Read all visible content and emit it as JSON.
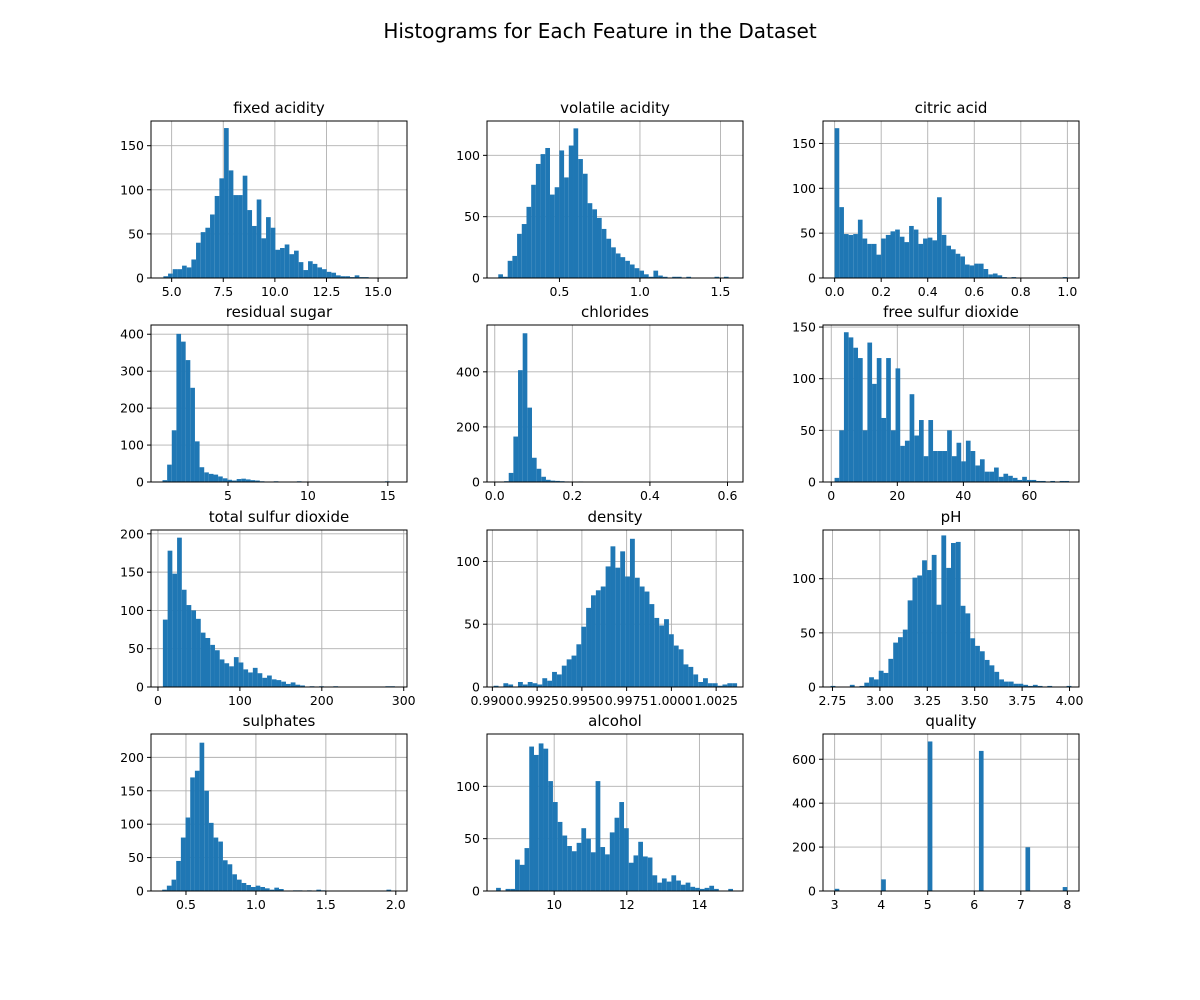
{
  "figure": {
    "title": "Histograms for Each Feature in the Dataset"
  },
  "style": {
    "bar_color": "#1f77b4",
    "grid_color": "#b0b0b0"
  },
  "chart_data": [
    {
      "type": "bar",
      "title": "fixed acidity",
      "grid": true,
      "xlim": [
        4.0,
        16.4
      ],
      "ylim": [
        0,
        178
      ],
      "xticks": [
        {
          "v": 5.0,
          "label": "5.0"
        },
        {
          "v": 7.5,
          "label": "7.5"
        },
        {
          "v": 10.0,
          "label": "10.0"
        },
        {
          "v": 12.5,
          "label": "12.5"
        },
        {
          "v": 15.0,
          "label": "15.0"
        }
      ],
      "yticks": [
        {
          "v": 0,
          "label": "0"
        },
        {
          "v": 50,
          "label": "50"
        },
        {
          "v": 100,
          "label": "100"
        },
        {
          "v": 150,
          "label": "150"
        }
      ],
      "bin_start": 4.6,
      "bin_width": 0.226,
      "values": [
        2,
        5,
        10,
        10,
        14,
        12,
        21,
        40,
        52,
        57,
        72,
        93,
        113,
        170,
        122,
        94,
        94,
        116,
        77,
        59,
        89,
        45,
        69,
        57,
        32,
        34,
        38,
        27,
        31,
        18,
        9,
        19,
        16,
        12,
        10,
        7,
        6,
        3,
        2,
        2,
        1,
        3,
        1,
        1
      ]
    },
    {
      "type": "bar",
      "title": "volatile acidity",
      "grid": true,
      "xlim": [
        0.05,
        1.64
      ],
      "ylim": [
        0,
        128
      ],
      "xticks": [
        {
          "v": 0.5,
          "label": "0.5"
        },
        {
          "v": 1.0,
          "label": "1.0"
        },
        {
          "v": 1.5,
          "label": "1.5"
        }
      ],
      "yticks": [
        {
          "v": 0,
          "label": "0"
        },
        {
          "v": 50,
          "label": "50"
        },
        {
          "v": 100,
          "label": "100"
        }
      ],
      "bin_start": 0.12,
      "bin_width": 0.0292,
      "values": [
        3,
        1,
        14,
        18,
        36,
        44,
        58,
        76,
        93,
        101,
        106,
        68,
        74,
        104,
        82,
        108,
        122,
        97,
        85,
        61,
        56,
        49,
        40,
        32,
        25,
        20,
        17,
        14,
        11,
        8,
        6,
        3,
        1,
        6,
        2,
        1,
        0,
        1,
        1,
        0,
        1,
        0,
        0,
        0,
        0,
        0,
        1,
        0,
        1,
        0
      ]
    },
    {
      "type": "bar",
      "title": "citric acid",
      "grid": true,
      "xlim": [
        -0.05,
        1.05
      ],
      "ylim": [
        0,
        175
      ],
      "xticks": [
        {
          "v": 0.0,
          "label": "0.0"
        },
        {
          "v": 0.2,
          "label": "0.2"
        },
        {
          "v": 0.4,
          "label": "0.4"
        },
        {
          "v": 0.6,
          "label": "0.6"
        },
        {
          "v": 0.8,
          "label": "0.8"
        },
        {
          "v": 1.0,
          "label": "1.0"
        }
      ],
      "yticks": [
        {
          "v": 0,
          "label": "0"
        },
        {
          "v": 50,
          "label": "50"
        },
        {
          "v": 100,
          "label": "100"
        },
        {
          "v": 150,
          "label": "150"
        }
      ],
      "bin_start": 0.0,
      "bin_width": 0.02,
      "values": [
        167,
        79,
        49,
        48,
        49,
        65,
        44,
        38,
        38,
        26,
        44,
        48,
        52,
        54,
        46,
        40,
        58,
        54,
        38,
        44,
        45,
        42,
        90,
        48,
        36,
        32,
        27,
        24,
        15,
        14,
        16,
        16,
        10,
        4,
        5,
        3,
        1,
        0,
        1,
        0,
        0,
        0,
        0,
        0,
        0,
        0,
        0,
        0,
        0,
        1
      ]
    },
    {
      "type": "bar",
      "title": "residual sugar",
      "grid": true,
      "xlim": [
        0.18,
        16.2
      ],
      "ylim": [
        0,
        425
      ],
      "xticks": [
        {
          "v": 5,
          "label": "5"
        },
        {
          "v": 10,
          "label": "10"
        },
        {
          "v": 15,
          "label": "15"
        }
      ],
      "yticks": [
        {
          "v": 0,
          "label": "0"
        },
        {
          "v": 100,
          "label": "100"
        },
        {
          "v": 200,
          "label": "200"
        },
        {
          "v": 300,
          "label": "300"
        },
        {
          "v": 400,
          "label": "400"
        }
      ],
      "bin_start": 0.9,
      "bin_width": 0.29,
      "values": [
        5,
        47,
        140,
        401,
        380,
        330,
        255,
        110,
        40,
        26,
        22,
        20,
        15,
        10,
        6,
        4,
        8,
        9,
        7,
        5,
        4,
        2,
        1,
        0,
        2,
        0,
        1,
        0,
        0,
        2,
        0,
        0,
        1,
        0,
        0,
        0,
        0,
        0,
        0,
        0,
        0,
        1,
        0,
        0,
        0,
        0,
        0,
        1,
        2,
        1
      ]
    },
    {
      "type": "bar",
      "title": "chlorides",
      "grid": true,
      "xlim": [
        -0.02,
        0.64
      ],
      "ylim": [
        0,
        570
      ],
      "xticks": [
        {
          "v": 0.0,
          "label": "0.0"
        },
        {
          "v": 0.2,
          "label": "0.2"
        },
        {
          "v": 0.4,
          "label": "0.4"
        },
        {
          "v": 0.6,
          "label": "0.6"
        }
      ],
      "yticks": [
        {
          "v": 0,
          "label": "0"
        },
        {
          "v": 200,
          "label": "200"
        },
        {
          "v": 400,
          "label": "400"
        }
      ],
      "bin_start": 0.012,
      "bin_width": 0.012,
      "values": [
        0,
        3,
        33,
        165,
        406,
        540,
        270,
        88,
        48,
        19,
        8,
        5,
        4,
        3,
        2,
        1,
        1,
        2,
        1,
        0,
        0,
        1,
        0,
        1,
        0,
        0,
        0,
        0,
        0,
        0,
        0,
        0,
        1,
        0,
        0,
        0,
        0,
        0,
        0,
        0,
        0,
        0,
        0,
        0,
        0,
        0,
        0,
        0,
        0,
        1
      ]
    },
    {
      "type": "bar",
      "title": "free sulfur dioxide",
      "grid": true,
      "xlim": [
        -2.5,
        75.0
      ],
      "ylim": [
        0,
        152
      ],
      "xticks": [
        {
          "v": 0,
          "label": "0"
        },
        {
          "v": 20,
          "label": "20"
        },
        {
          "v": 40,
          "label": "40"
        },
        {
          "v": 60,
          "label": "60"
        }
      ],
      "yticks": [
        {
          "v": 0,
          "label": "0"
        },
        {
          "v": 50,
          "label": "50"
        },
        {
          "v": 100,
          "label": "100"
        },
        {
          "v": 150,
          "label": "150"
        }
      ],
      "bin_start": 1.0,
      "bin_width": 1.42,
      "values": [
        4,
        50,
        145,
        140,
        130,
        120,
        50,
        135,
        95,
        120,
        62,
        120,
        50,
        110,
        35,
        40,
        85,
        45,
        60,
        25,
        60,
        30,
        30,
        30,
        50,
        25,
        38,
        20,
        40,
        30,
        16,
        22,
        10,
        10,
        14,
        5,
        8,
        6,
        4,
        2,
        5,
        2,
        2,
        1,
        1,
        0,
        1,
        0,
        1,
        1
      ]
    },
    {
      "type": "bar",
      "title": "total sulfur dioxide",
      "grid": true,
      "xlim": [
        -8.5,
        304
      ],
      "ylim": [
        0,
        205
      ],
      "xticks": [
        {
          "v": 0,
          "label": "0"
        },
        {
          "v": 100,
          "label": "100"
        },
        {
          "v": 200,
          "label": "200"
        },
        {
          "v": 300,
          "label": "300"
        }
      ],
      "yticks": [
        {
          "v": 0,
          "label": "0"
        },
        {
          "v": 50,
          "label": "50"
        },
        {
          "v": 100,
          "label": "100"
        },
        {
          "v": 150,
          "label": "150"
        },
        {
          "v": 200,
          "label": "200"
        }
      ],
      "bin_start": 6.0,
      "bin_width": 5.78,
      "values": [
        88,
        178,
        148,
        195,
        127,
        107,
        100,
        89,
        71,
        64,
        55,
        48,
        36,
        31,
        27,
        39,
        32,
        23,
        19,
        25,
        18,
        12,
        15,
        10,
        9,
        7,
        4,
        6,
        3,
        2,
        0,
        1,
        0,
        1,
        0,
        0,
        1,
        0,
        0,
        0,
        0,
        0,
        0,
        0,
        0,
        0,
        0,
        1,
        1,
        0
      ]
    },
    {
      "type": "bar",
      "title": "density",
      "grid": true,
      "xlim": [
        0.9897,
        1.004
      ],
      "ylim": [
        0,
        125
      ],
      "xticks": [
        {
          "v": 0.99,
          "label": "0.9900"
        },
        {
          "v": 0.9925,
          "label": "0.9925"
        },
        {
          "v": 0.995,
          "label": "0.9950"
        },
        {
          "v": 0.9975,
          "label": "0.9975"
        },
        {
          "v": 1.0,
          "label": "1.0000"
        },
        {
          "v": 1.0025,
          "label": "1.0025"
        }
      ],
      "bin_start": 0.99007,
      "bin_width": 0.000272,
      "yticks": [
        {
          "v": 0,
          "label": "0"
        },
        {
          "v": 50,
          "label": "50"
        },
        {
          "v": 100,
          "label": "100"
        }
      ],
      "values": [
        1,
        0,
        3,
        2,
        0,
        4,
        2,
        4,
        3,
        2,
        7,
        5,
        12,
        10,
        17,
        22,
        25,
        34,
        48,
        63,
        73,
        77,
        80,
        96,
        112,
        95,
        108,
        88,
        118,
        87,
        80,
        76,
        66,
        55,
        49,
        54,
        42,
        33,
        30,
        18,
        16,
        10,
        4,
        7,
        3,
        3,
        1,
        2,
        3,
        3
      ]
    },
    {
      "type": "bar",
      "title": "pH",
      "grid": true,
      "xlim": [
        2.7,
        4.05
      ],
      "ylim": [
        0,
        145
      ],
      "xticks": [
        {
          "v": 2.75,
          "label": "2.75"
        },
        {
          "v": 3.0,
          "label": "3.00"
        },
        {
          "v": 3.25,
          "label": "3.25"
        },
        {
          "v": 3.5,
          "label": "3.50"
        },
        {
          "v": 3.75,
          "label": "3.75"
        },
        {
          "v": 4.0,
          "label": "4.00"
        }
      ],
      "yticks": [
        {
          "v": 0,
          "label": "0"
        },
        {
          "v": 50,
          "label": "50"
        },
        {
          "v": 100,
          "label": "100"
        }
      ],
      "bin_start": 2.74,
      "bin_width": 0.0254,
      "values": [
        1,
        0,
        0,
        0,
        2,
        0,
        1,
        4,
        9,
        7,
        15,
        13,
        26,
        41,
        46,
        53,
        80,
        101,
        103,
        117,
        108,
        122,
        76,
        140,
        110,
        133,
        134,
        75,
        68,
        45,
        38,
        33,
        25,
        20,
        14,
        7,
        5,
        5,
        3,
        3,
        2,
        1,
        2,
        1,
        0,
        1,
        0,
        0,
        0,
        1
      ]
    },
    {
      "type": "bar",
      "title": "sulphates",
      "grid": true,
      "xlim": [
        0.25,
        2.08
      ],
      "ylim": [
        0,
        235
      ],
      "xticks": [
        {
          "v": 0.5,
          "label": "0.5"
        },
        {
          "v": 1.0,
          "label": "1.0"
        },
        {
          "v": 1.5,
          "label": "1.5"
        },
        {
          "v": 2.0,
          "label": "2.0"
        }
      ],
      "yticks": [
        {
          "v": 0,
          "label": "0"
        },
        {
          "v": 50,
          "label": "50"
        },
        {
          "v": 100,
          "label": "100"
        },
        {
          "v": 150,
          "label": "150"
        },
        {
          "v": 200,
          "label": "200"
        }
      ],
      "bin_start": 0.33,
      "bin_width": 0.0334,
      "values": [
        2,
        8,
        17,
        45,
        80,
        110,
        170,
        180,
        222,
        150,
        102,
        80,
        74,
        46,
        40,
        25,
        17,
        12,
        9,
        6,
        8,
        6,
        4,
        2,
        5,
        3,
        0,
        0,
        1,
        1,
        0,
        1,
        0,
        2,
        1,
        0,
        0,
        0,
        0,
        0,
        0,
        0,
        0,
        0,
        0,
        0,
        0,
        0,
        2,
        0
      ]
    },
    {
      "type": "bar",
      "title": "alcohol",
      "grid": true,
      "xlim": [
        8.15,
        15.2
      ],
      "ylim": [
        0,
        150
      ],
      "xticks": [
        {
          "v": 10,
          "label": "10"
        },
        {
          "v": 12,
          "label": "12"
        },
        {
          "v": 14,
          "label": "14"
        }
      ],
      "yticks": [
        {
          "v": 0,
          "label": "0"
        },
        {
          "v": 50,
          "label": "50"
        },
        {
          "v": 100,
          "label": "100"
        }
      ],
      "bin_start": 8.4,
      "bin_width": 0.1305,
      "values": [
        3,
        0,
        2,
        2,
        30,
        25,
        41,
        138,
        130,
        141,
        136,
        105,
        85,
        66,
        53,
        43,
        38,
        46,
        60,
        50,
        37,
        105,
        42,
        35,
        56,
        70,
        85,
        60,
        27,
        34,
        47,
        33,
        32,
        15,
        8,
        12,
        9,
        15,
        10,
        6,
        8,
        4,
        3,
        2,
        3,
        5,
        2,
        0,
        0,
        2
      ]
    },
    {
      "type": "bar",
      "title": "quality",
      "grid": true,
      "xlim": [
        2.75,
        8.25
      ],
      "ylim": [
        0,
        715
      ],
      "xticks": [
        {
          "v": 3,
          "label": "3"
        },
        {
          "v": 4,
          "label": "4"
        },
        {
          "v": 5,
          "label": "5"
        },
        {
          "v": 6,
          "label": "6"
        },
        {
          "v": 7,
          "label": "7"
        },
        {
          "v": 8,
          "label": "8"
        }
      ],
      "yticks": [
        {
          "v": 0,
          "label": "0"
        },
        {
          "v": 200,
          "label": "200"
        },
        {
          "v": 400,
          "label": "400"
        },
        {
          "v": 600,
          "label": "600"
        }
      ],
      "bin_start": 3.0,
      "bin_width": 0.1,
      "values": [
        10,
        0,
        0,
        0,
        0,
        0,
        0,
        0,
        0,
        0,
        53,
        0,
        0,
        0,
        0,
        0,
        0,
        0,
        0,
        0,
        681,
        0,
        0,
        0,
        0,
        0,
        0,
        0,
        0,
        0,
        0,
        638,
        0,
        0,
        0,
        0,
        0,
        0,
        0,
        0,
        0,
        199,
        0,
        0,
        0,
        0,
        0,
        0,
        0,
        18
      ]
    }
  ]
}
